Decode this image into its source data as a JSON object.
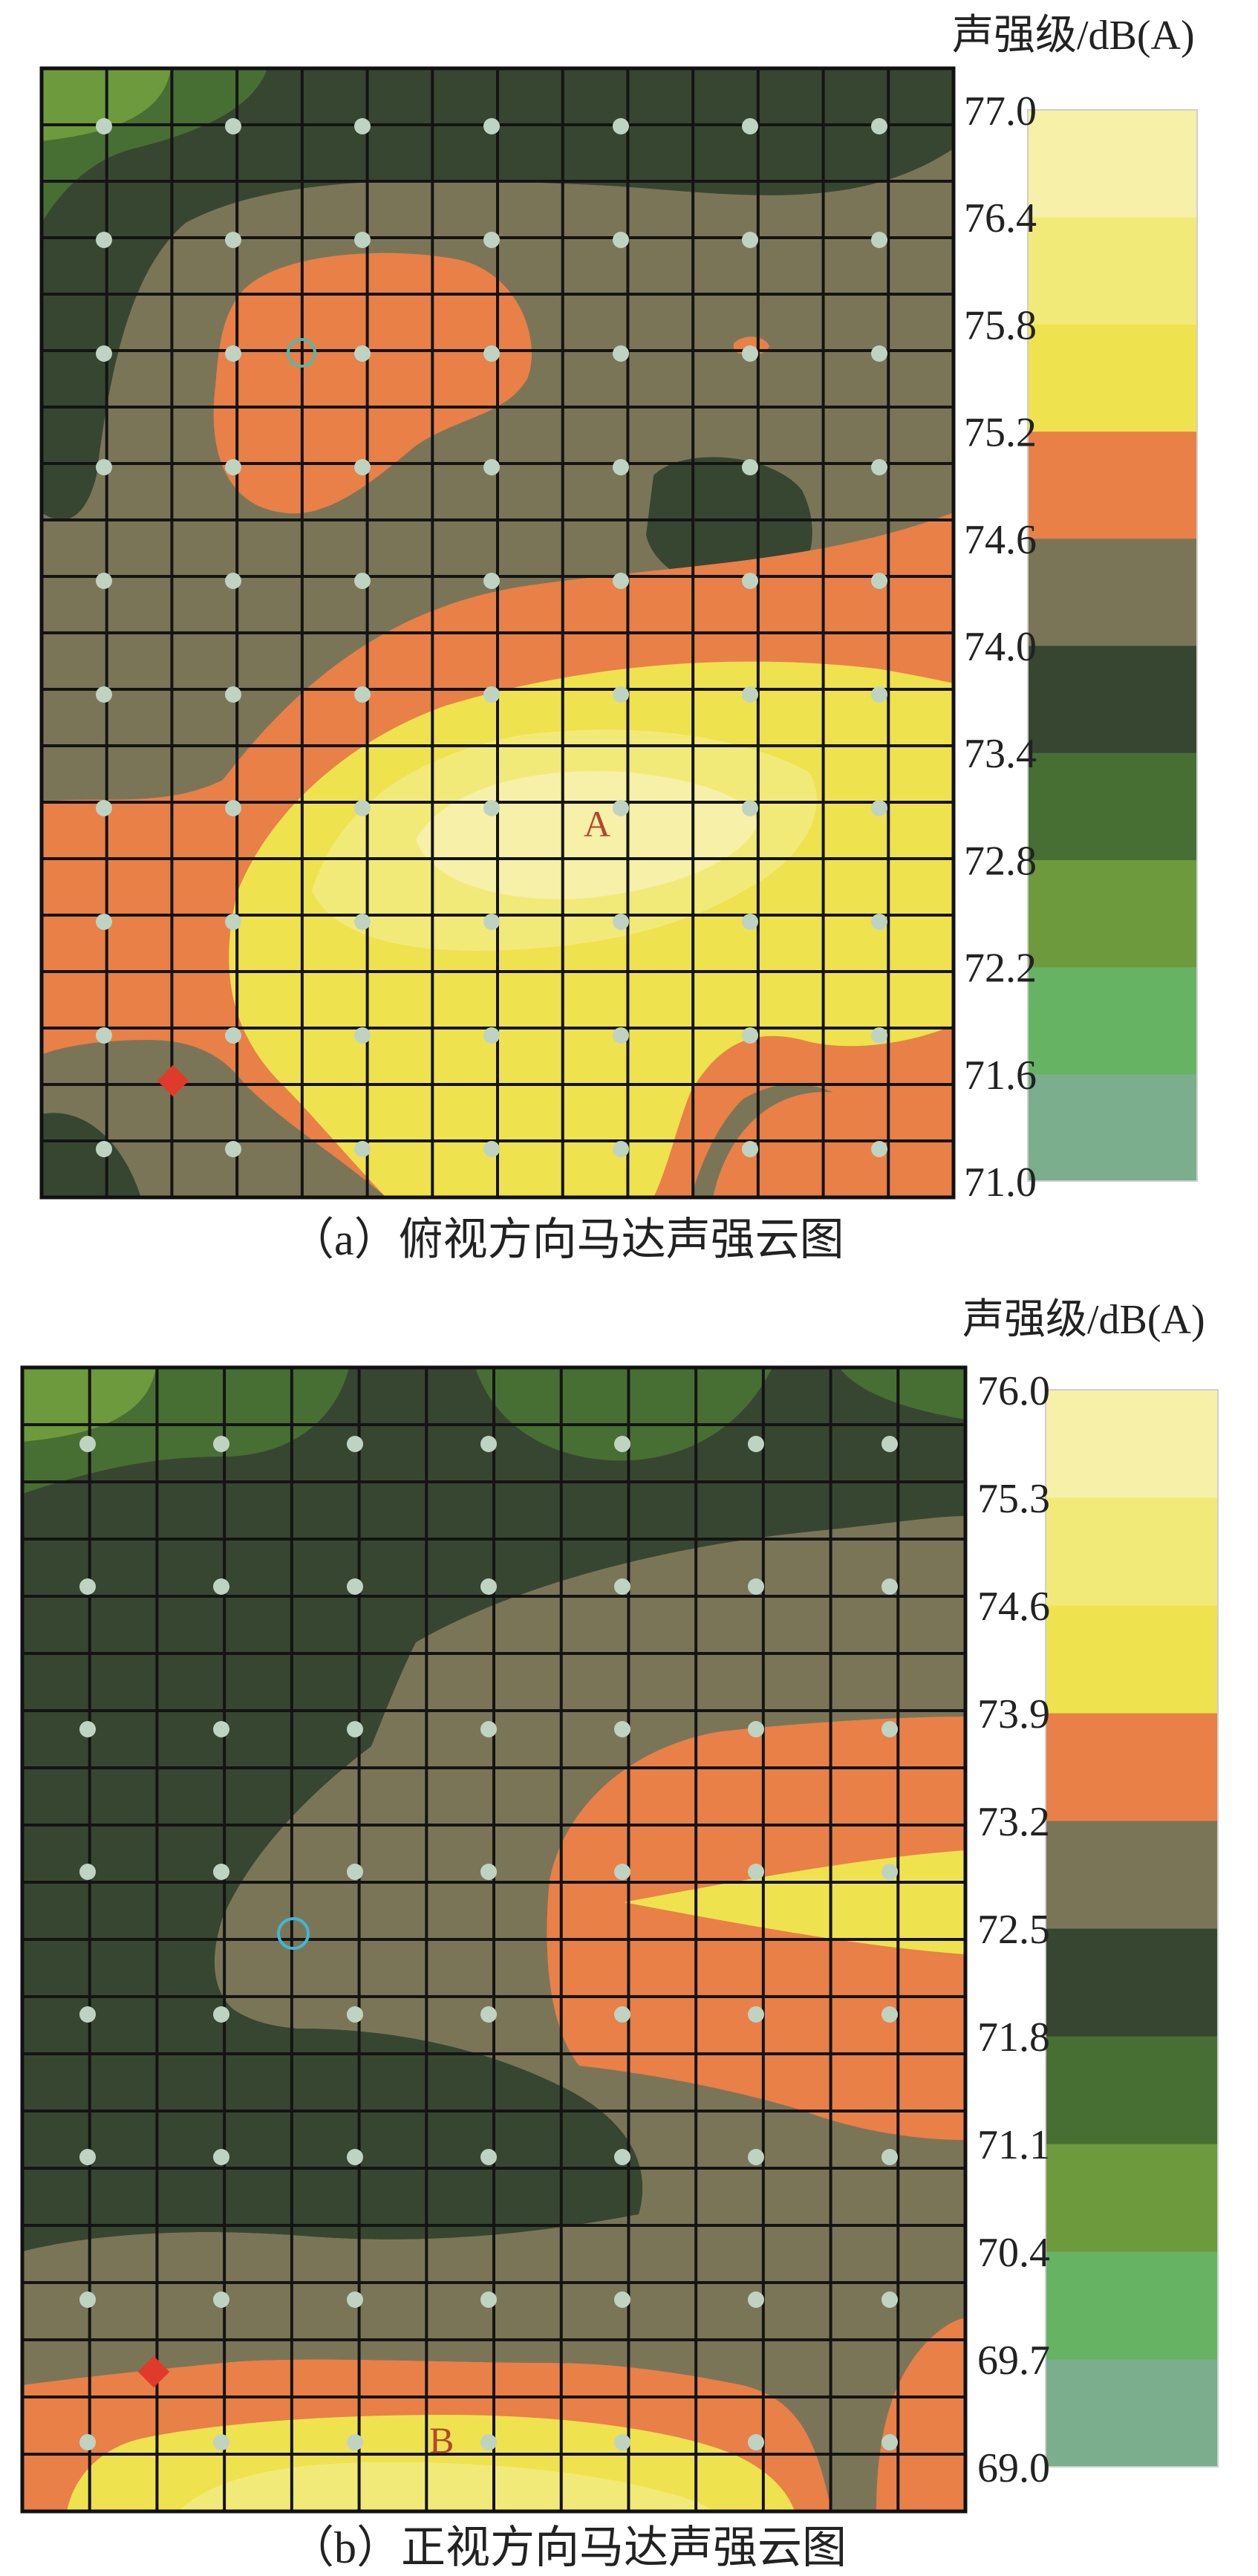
{
  "chart_data": [
    {
      "type": "heatmap",
      "caption": "（a）俯视方向马达声强云图",
      "colorbar_title": "声强级/dB(A)",
      "colorbar_ticks": [
        "77.0",
        "76.4",
        "75.8",
        "75.2",
        "74.6",
        "74.0",
        "73.4",
        "72.8",
        "72.2",
        "71.6",
        "71.0"
      ],
      "range": [
        71.0,
        77.0
      ],
      "point_label": "A",
      "grid": true,
      "colors": [
        "#7aae8c",
        "#66b363",
        "#6d9a3c",
        "#476f33",
        "#374631",
        "#7b7558",
        "#e88048",
        "#efe24f",
        "#f2ea78",
        "#f6f0a8"
      ],
      "regions": [
        {
          "level": 74.3,
          "color": "#7b7558"
        },
        {
          "level": 73.7,
          "color": "#374631",
          "where": "top-left corner, top strip, small island center-right"
        },
        {
          "level": 73.1,
          "color": "#476f33",
          "where": "top-left corner"
        },
        {
          "level": 72.5,
          "color": "#6d9a3c",
          "where": "top-left corner"
        },
        {
          "level": 74.9,
          "color": "#e88048",
          "where": "upper-center blob, lower band, bottom-right"
        },
        {
          "level": 75.5,
          "color": "#efe24f",
          "where": "lower-center"
        },
        {
          "level": 76.1,
          "color": "#f2ea78",
          "where": "lower-center core"
        },
        {
          "level": 76.7,
          "color": "#f6f0a8",
          "where": "peak near A"
        }
      ]
    },
    {
      "type": "heatmap",
      "caption": "（b）正视方向马达声强云图",
      "colorbar_title": "声强级/dB(A)",
      "colorbar_ticks": [
        "76.0",
        "75.3",
        "74.6",
        "73.9",
        "73.2",
        "72.5",
        "71.8",
        "71.1",
        "70.4",
        "69.7",
        "69.0"
      ],
      "range": [
        69.0,
        76.0
      ],
      "point_label": "B",
      "grid": true,
      "colors": [
        "#7aae8c",
        "#66b363",
        "#6d9a3c",
        "#476f33",
        "#374631",
        "#7b7558",
        "#e88048",
        "#efe24f",
        "#f2ea78",
        "#f6f0a8"
      ],
      "regions": [
        {
          "level": 72.1,
          "color": "#374631"
        },
        {
          "level": 71.5,
          "color": "#476f33",
          "where": "top edge blobs"
        },
        {
          "level": 70.8,
          "color": "#6d9a3c",
          "where": "top-left corner"
        },
        {
          "level": 72.9,
          "color": "#7b7558",
          "where": "center band, lower band"
        },
        {
          "level": 73.5,
          "color": "#e88048",
          "where": "right wedge, bottom band"
        },
        {
          "level": 74.3,
          "color": "#efe24f",
          "where": "right wedge tip, bottom"
        },
        {
          "level": 75.0,
          "color": "#f2ea78",
          "where": "bottom center"
        }
      ]
    }
  ]
}
